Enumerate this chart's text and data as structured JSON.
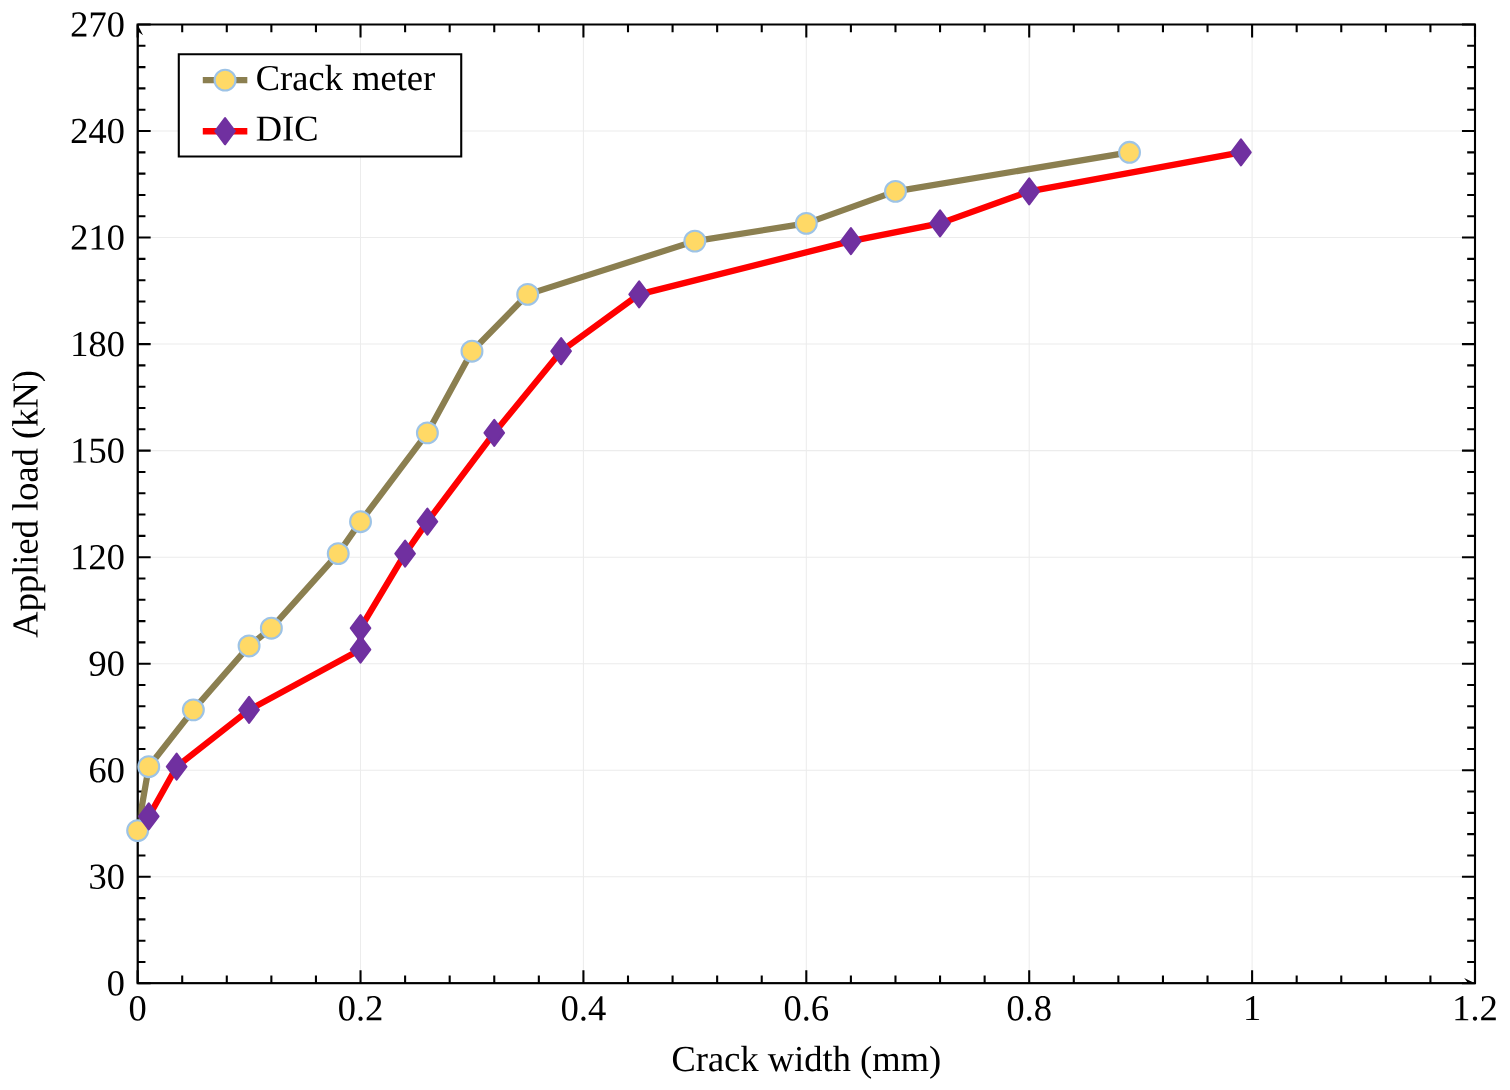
{
  "chart_data": {
    "type": "line",
    "xlabel": "Crack width (mm)",
    "ylabel": "Applied load (kN)",
    "xlim": [
      0,
      1.2
    ],
    "xticks": [
      0,
      0.2,
      0.4,
      0.6,
      0.8,
      1,
      1.2
    ],
    "ylim": [
      0,
      270
    ],
    "yticks": [
      0,
      30,
      60,
      90,
      120,
      150,
      180,
      210,
      240,
      270
    ],
    "grid": true,
    "legend": "top left",
    "series": [
      {
        "name": "Crack meter",
        "color": "#8b7f50",
        "marker": "circle",
        "x": [
          0,
          0.01,
          0.05,
          0.1,
          0.12,
          0.18,
          0.2,
          0.26,
          0.3,
          0.35,
          0.5,
          0.6,
          0.68,
          0.89
        ],
        "values": [
          43,
          61,
          77,
          95,
          100,
          121,
          130,
          155,
          178,
          194,
          209,
          214,
          223,
          234
        ]
      },
      {
        "name": "DIC",
        "color": "#ff0000",
        "marker": "diamond",
        "x": [
          0.01,
          0.035,
          0.1,
          0.2,
          0.2,
          0.24,
          0.26,
          0.32,
          0.38,
          0.45,
          0.64,
          0.72,
          0.8,
          0.99
        ],
        "values": [
          47,
          61,
          77,
          94,
          100,
          121,
          130,
          155,
          178,
          194,
          209,
          214,
          223,
          234
        ]
      }
    ]
  }
}
